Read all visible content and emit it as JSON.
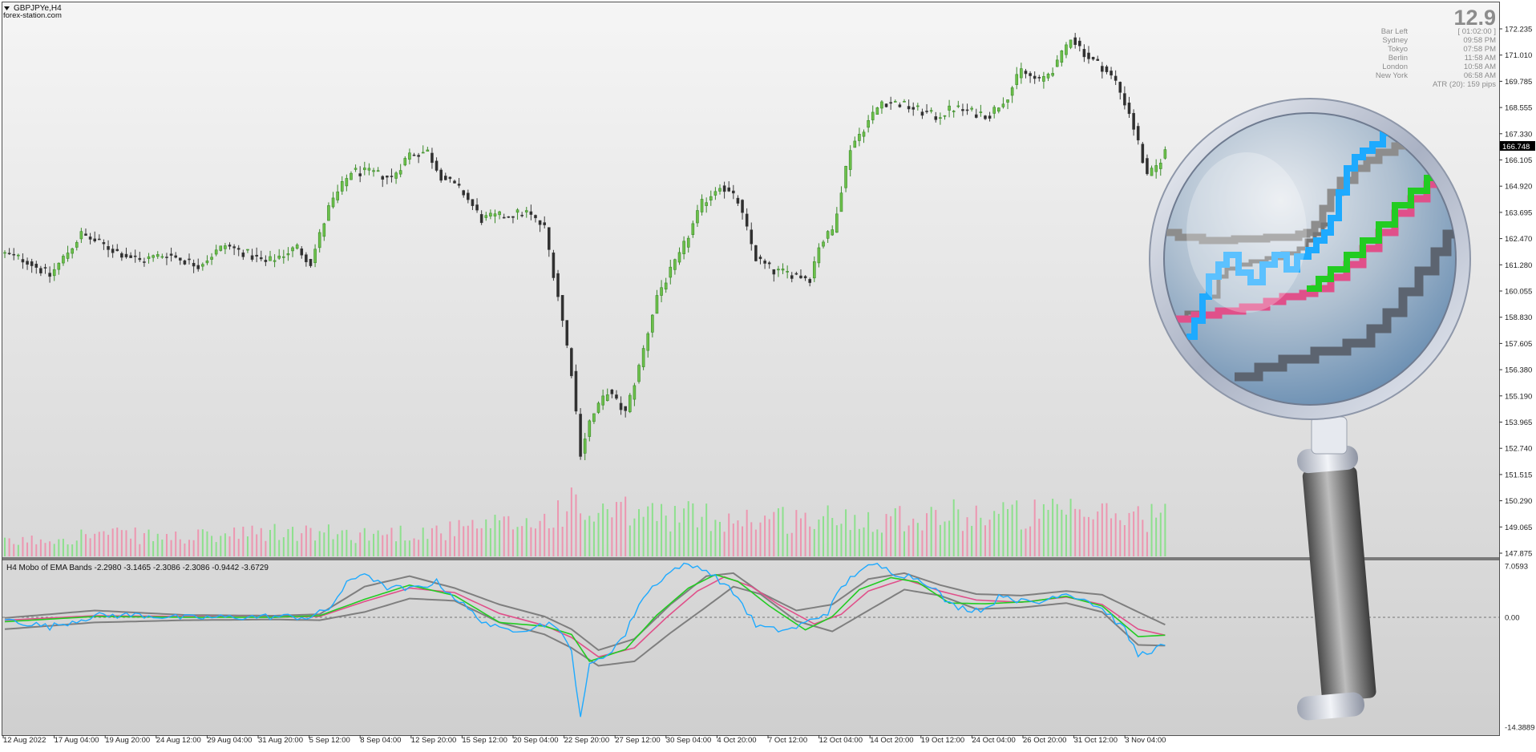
{
  "chart_title": "GBPJPYe,H4",
  "watermark": "forex-station.com",
  "countdown": "12.9",
  "info_panel": [
    {
      "label": "Bar Left",
      "value": "[ 01:02:00 ]"
    },
    {
      "label": "Sydney",
      "value": "09:58 PM"
    },
    {
      "label": "Tokyo",
      "value": "07:58 PM"
    },
    {
      "label": "Berlin",
      "value": "11:58 AM"
    },
    {
      "label": "London",
      "value": "10:58 AM"
    },
    {
      "label": "New York",
      "value": "06:58 AM"
    }
  ],
  "atr_text": "ATR (20): 159 pips",
  "colors": {
    "up_candle": "#3b8a2a",
    "down_candle": "#3b3b3b",
    "vol_up": "#7fe07f",
    "vol_down": "#f08aa8",
    "cyan_line": "#1eaaff",
    "green_line": "#22cc22",
    "pink_line": "#e0508a",
    "gray_band": "#7f7f7f",
    "current_price_bg": "#000000"
  },
  "chart_data": {
    "type": "candlestick",
    "price_axis": [
      "172.235",
      "171.010",
      "169.785",
      "168.555",
      "167.330",
      "166.105",
      "164.920",
      "163.695",
      "162.470",
      "161.280",
      "160.055",
      "158.830",
      "157.605",
      "156.380",
      "155.190",
      "153.965",
      "152.740",
      "151.515",
      "150.290",
      "149.065",
      "147.875"
    ],
    "price_range": [
      147.875,
      172.235
    ],
    "current_price": "166.748",
    "x_labels": [
      "12 Aug 2022",
      "17 Aug 04:00",
      "19 Aug 20:00",
      "24 Aug 12:00",
      "29 Aug 04:00",
      "31 Aug 20:00",
      "5 Sep 12:00",
      "8 Sep 04:00",
      "12 Sep 20:00",
      "15 Sep 12:00",
      "20 Sep 04:00",
      "22 Sep 20:00",
      "27 Sep 12:00",
      "30 Sep 04:00",
      "4 Oct 20:00",
      "7 Oct 12:00",
      "12 Oct 04:00",
      "14 Oct 20:00",
      "19 Oct 12:00",
      "24 Oct 04:00",
      "26 Oct 20:00",
      "31 Oct 12:00",
      "3 Nov 04:00"
    ],
    "price_path": [
      [
        0,
        161.9
      ],
      [
        5,
        161.6
      ],
      [
        10,
        160.9
      ],
      [
        17,
        162.8
      ],
      [
        24,
        162.1
      ],
      [
        30,
        161.6
      ],
      [
        36,
        161.9
      ],
      [
        43,
        161.4
      ],
      [
        49,
        162.3
      ],
      [
        54,
        161.9
      ],
      [
        58,
        161.5
      ],
      [
        61,
        161.8
      ],
      [
        65,
        162.2
      ],
      [
        68,
        161.5
      ],
      [
        72,
        164.0
      ],
      [
        77,
        165.7
      ],
      [
        82,
        165.6
      ],
      [
        86,
        165.4
      ],
      [
        90,
        166.5
      ],
      [
        94,
        166.6
      ],
      [
        97,
        165.5
      ],
      [
        102,
        164.7
      ],
      [
        106,
        163.5
      ],
      [
        112,
        163.7
      ],
      [
        116,
        163.8
      ],
      [
        120,
        163.1
      ],
      [
        123,
        160.0
      ],
      [
        126,
        156.5
      ],
      [
        128,
        152.8
      ],
      [
        130,
        154.2
      ],
      [
        134,
        155.6
      ],
      [
        138,
        154.6
      ],
      [
        141,
        156.7
      ],
      [
        145,
        160.0
      ],
      [
        150,
        161.8
      ],
      [
        155,
        164.2
      ],
      [
        159,
        165.1
      ],
      [
        163,
        164.3
      ],
      [
        167,
        161.7
      ],
      [
        171,
        161.1
      ],
      [
        175,
        161.0
      ],
      [
        179,
        160.8
      ],
      [
        181,
        162.3
      ],
      [
        184,
        163.0
      ],
      [
        188,
        166.8
      ],
      [
        192,
        168.0
      ],
      [
        195,
        168.9
      ],
      [
        199,
        168.8
      ],
      [
        203,
        168.5
      ],
      [
        207,
        168.2
      ],
      [
        211,
        168.6
      ],
      [
        215,
        168.4
      ],
      [
        219,
        168.3
      ],
      [
        223,
        169.2
      ],
      [
        226,
        170.3
      ],
      [
        230,
        169.8
      ],
      [
        234,
        170.6
      ],
      [
        237,
        171.9
      ],
      [
        241,
        170.9
      ],
      [
        244,
        170.5
      ],
      [
        247,
        169.8
      ],
      [
        250,
        168.4
      ],
      [
        252,
        167.0
      ],
      [
        254,
        165.4
      ],
      [
        256,
        165.9
      ],
      [
        258,
        166.6
      ]
    ],
    "volume_profile": [
      [
        0,
        18
      ],
      [
        20,
        30
      ],
      [
        40,
        25
      ],
      [
        60,
        32
      ],
      [
        80,
        30
      ],
      [
        100,
        35
      ],
      [
        120,
        48
      ],
      [
        125,
        70
      ],
      [
        130,
        55
      ],
      [
        140,
        58
      ],
      [
        160,
        52
      ],
      [
        180,
        50
      ],
      [
        200,
        55
      ],
      [
        220,
        57
      ],
      [
        240,
        56
      ],
      [
        258,
        55
      ]
    ],
    "indicator": {
      "name": "H4 Mobo of EMA Bands -2.2980 -3.1465 -2.3086 -2.3086 -0.9442 -3.6729",
      "axis": [
        "7.0593",
        "0.00",
        "-14.3889"
      ],
      "range": [
        -14.3889,
        7.0593
      ],
      "cyan_path": [
        [
          0,
          -0.2
        ],
        [
          10,
          -1.2
        ],
        [
          20,
          0.3
        ],
        [
          30,
          0.4
        ],
        [
          40,
          0.0
        ],
        [
          50,
          0.1
        ],
        [
          60,
          0.2
        ],
        [
          68,
          0.1
        ],
        [
          72,
          1.2
        ],
        [
          76,
          4.5
        ],
        [
          80,
          6.2
        ],
        [
          84,
          4.2
        ],
        [
          90,
          3.8
        ],
        [
          96,
          4.8
        ],
        [
          100,
          2.8
        ],
        [
          105,
          0.1
        ],
        [
          110,
          -1.6
        ],
        [
          116,
          -1.4
        ],
        [
          122,
          -0.6
        ],
        [
          126,
          -4.5
        ],
        [
          128,
          -13.0
        ],
        [
          130,
          -6.5
        ],
        [
          134,
          -4.8
        ],
        [
          138,
          -2.2
        ],
        [
          141,
          2.0
        ],
        [
          145,
          4.8
        ],
        [
          150,
          7.0
        ],
        [
          155,
          6.8
        ],
        [
          159,
          5.0
        ],
        [
          163,
          2.8
        ],
        [
          167,
          -1.0
        ],
        [
          171,
          -1.6
        ],
        [
          175,
          -1.5
        ],
        [
          179,
          -0.4
        ],
        [
          183,
          0.8
        ],
        [
          186,
          4.0
        ],
        [
          190,
          6.5
        ],
        [
          194,
          7.0
        ],
        [
          198,
          6.0
        ],
        [
          202,
          5.5
        ],
        [
          206,
          4.4
        ],
        [
          210,
          1.8
        ],
        [
          214,
          1.2
        ],
        [
          218,
          1.2
        ],
        [
          222,
          3.2
        ],
        [
          226,
          2.2
        ],
        [
          230,
          2.0
        ],
        [
          235,
          3.4
        ],
        [
          240,
          2.6
        ],
        [
          245,
          0.8
        ],
        [
          249,
          -1.6
        ],
        [
          252,
          -5.0
        ],
        [
          255,
          -4.3
        ],
        [
          258,
          -3.7
        ]
      ],
      "green_path": [
        [
          0,
          -0.5
        ],
        [
          20,
          0.2
        ],
        [
          40,
          0.1
        ],
        [
          60,
          0.1
        ],
        [
          70,
          0.3
        ],
        [
          80,
          2.5
        ],
        [
          90,
          4.4
        ],
        [
          100,
          3.0
        ],
        [
          110,
          -0.6
        ],
        [
          120,
          -1.1
        ],
        [
          126,
          -2.2
        ],
        [
          130,
          -5.8
        ],
        [
          138,
          -4.2
        ],
        [
          145,
          0.4
        ],
        [
          152,
          4.0
        ],
        [
          158,
          5.8
        ],
        [
          163,
          4.9
        ],
        [
          170,
          1.6
        ],
        [
          178,
          -1.6
        ],
        [
          184,
          0.2
        ],
        [
          190,
          3.8
        ],
        [
          197,
          5.4
        ],
        [
          203,
          4.8
        ],
        [
          210,
          2.0
        ],
        [
          218,
          1.9
        ],
        [
          228,
          2.2
        ],
        [
          236,
          2.9
        ],
        [
          244,
          1.6
        ],
        [
          252,
          -2.5
        ],
        [
          258,
          -2.3
        ]
      ],
      "pink_path": [
        [
          0,
          -0.3
        ],
        [
          20,
          0.3
        ],
        [
          40,
          0.2
        ],
        [
          60,
          0.1
        ],
        [
          70,
          0.2
        ],
        [
          80,
          2.2
        ],
        [
          90,
          4.0
        ],
        [
          100,
          3.4
        ],
        [
          110,
          0.6
        ],
        [
          120,
          -1.0
        ],
        [
          126,
          -2.6
        ],
        [
          132,
          -5.2
        ],
        [
          140,
          -4.0
        ],
        [
          147,
          0.0
        ],
        [
          154,
          3.6
        ],
        [
          160,
          5.5
        ],
        [
          166,
          4.2
        ],
        [
          172,
          1.8
        ],
        [
          180,
          -0.8
        ],
        [
          186,
          0.5
        ],
        [
          192,
          3.6
        ],
        [
          200,
          5.2
        ],
        [
          208,
          3.6
        ],
        [
          216,
          2.4
        ],
        [
          226,
          2.1
        ],
        [
          236,
          2.8
        ],
        [
          244,
          1.8
        ],
        [
          252,
          -1.5
        ],
        [
          258,
          -2.3
        ]
      ],
      "upper_band": [
        [
          0,
          0.0
        ],
        [
          20,
          1.0
        ],
        [
          40,
          0.4
        ],
        [
          60,
          0.3
        ],
        [
          70,
          0.5
        ],
        [
          80,
          4.2
        ],
        [
          90,
          5.6
        ],
        [
          100,
          4.0
        ],
        [
          110,
          1.8
        ],
        [
          120,
          0.2
        ],
        [
          126,
          -1.5
        ],
        [
          132,
          -4.3
        ],
        [
          140,
          -2.8
        ],
        [
          148,
          1.8
        ],
        [
          156,
          5.6
        ],
        [
          162,
          6.0
        ],
        [
          168,
          3.4
        ],
        [
          176,
          1.0
        ],
        [
          184,
          1.8
        ],
        [
          192,
          5.2
        ],
        [
          200,
          6.0
        ],
        [
          208,
          4.4
        ],
        [
          216,
          3.2
        ],
        [
          226,
          3.0
        ],
        [
          236,
          3.6
        ],
        [
          244,
          3.1
        ],
        [
          252,
          0.8
        ],
        [
          258,
          -0.9
        ]
      ],
      "lower_band": [
        [
          0,
          -1.5
        ],
        [
          20,
          -0.6
        ],
        [
          40,
          -0.3
        ],
        [
          60,
          -0.2
        ],
        [
          70,
          -0.3
        ],
        [
          80,
          0.8
        ],
        [
          90,
          2.6
        ],
        [
          100,
          2.3
        ],
        [
          110,
          -0.6
        ],
        [
          120,
          -2.2
        ],
        [
          126,
          -4.0
        ],
        [
          132,
          -6.4
        ],
        [
          140,
          -5.8
        ],
        [
          148,
          -2.0
        ],
        [
          156,
          1.5
        ],
        [
          162,
          4.2
        ],
        [
          168,
          3.2
        ],
        [
          176,
          -0.4
        ],
        [
          184,
          -1.8
        ],
        [
          192,
          1.0
        ],
        [
          200,
          3.8
        ],
        [
          208,
          3.0
        ],
        [
          216,
          1.2
        ],
        [
          226,
          1.4
        ],
        [
          236,
          2.0
        ],
        [
          244,
          0.8
        ],
        [
          252,
          -3.6
        ],
        [
          258,
          -3.7
        ]
      ]
    }
  }
}
